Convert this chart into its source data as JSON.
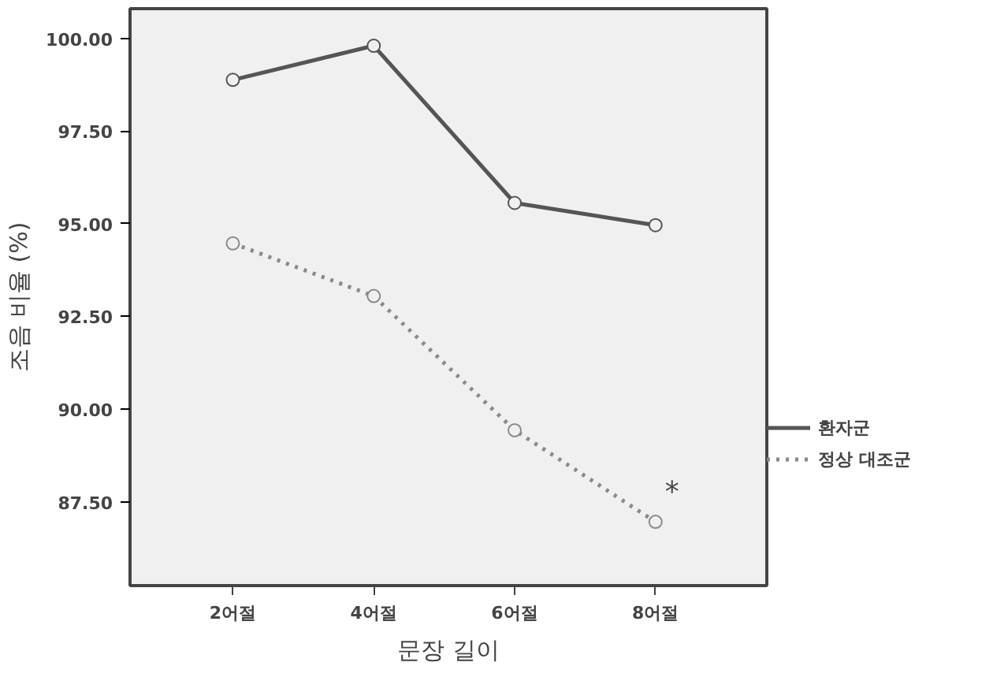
{
  "chart_data": {
    "type": "line",
    "xlabel": "문장 길이",
    "ylabel": "조음 비율 (%)",
    "categories": [
      "2어절",
      "4어절",
      "6어절",
      "8어절"
    ],
    "series": [
      {
        "name": "환자군",
        "color": "#555555",
        "line_style": "solid",
        "values": [
          98.88,
          99.8,
          95.56,
          94.96
        ]
      },
      {
        "name": "정상 대조군",
        "color": "#8a8a8a",
        "line_style": "dotted",
        "values": [
          94.47,
          93.05,
          89.43,
          86.96
        ]
      }
    ],
    "ylim": [
      85.24,
      100.8
    ],
    "yticks": [
      {
        "value": 87.5,
        "label": "87.50"
      },
      {
        "value": 90,
        "label": "90.00"
      },
      {
        "value": 92.5,
        "label": "92.50"
      },
      {
        "value": 95,
        "label": "95.00"
      },
      {
        "value": 97.5,
        "label": "97.50"
      },
      {
        "value": 100,
        "label": "100.00"
      }
    ],
    "marker": "circle",
    "legend": "right",
    "grid": false,
    "annotations": [
      {
        "text": "*",
        "x": "8어절",
        "y": 86.96
      }
    ]
  }
}
